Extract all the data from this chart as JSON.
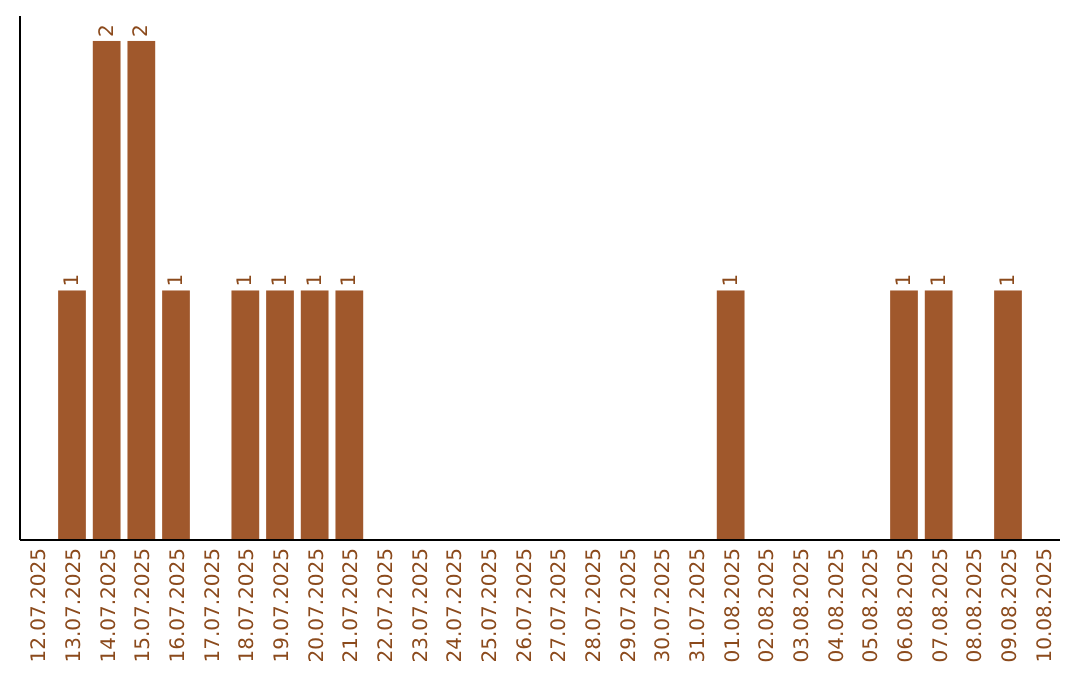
{
  "chart_data": {
    "type": "bar",
    "categories": [
      "12.07.2025",
      "13.07.2025",
      "14.07.2025",
      "15.07.2025",
      "16.07.2025",
      "17.07.2025",
      "18.07.2025",
      "19.07.2025",
      "20.07.2025",
      "21.07.2025",
      "22.07.2025",
      "23.07.2025",
      "24.07.2025",
      "25.07.2025",
      "26.07.2025",
      "27.07.2025",
      "28.07.2025",
      "29.07.2025",
      "30.07.2025",
      "31.07.2025",
      "01.08.2025",
      "02.08.2025",
      "03.08.2025",
      "04.08.2025",
      "05.08.2025",
      "06.08.2025",
      "07.08.2025",
      "08.08.2025",
      "09.08.2025",
      "10.08.2025"
    ],
    "values": [
      0,
      1,
      2,
      2,
      1,
      0,
      1,
      1,
      1,
      1,
      0,
      0,
      0,
      0,
      0,
      0,
      0,
      0,
      0,
      0,
      1,
      0,
      0,
      0,
      0,
      1,
      1,
      0,
      1,
      0
    ],
    "value_labels": [
      null,
      "1",
      "2",
      "2",
      "1",
      null,
      "1",
      "1",
      "1",
      "1",
      null,
      null,
      null,
      null,
      null,
      null,
      null,
      null,
      null,
      null,
      "1",
      null,
      null,
      null,
      null,
      "1",
      "1",
      null,
      "1",
      null
    ],
    "color": "#a0582c",
    "ylim": [
      0,
      2.1
    ],
    "tick_labels": "x"
  }
}
